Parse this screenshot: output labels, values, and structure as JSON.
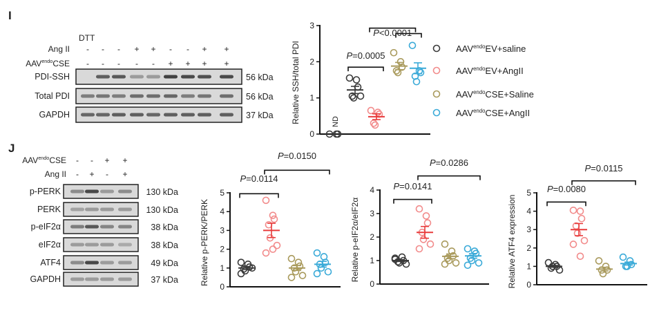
{
  "panel_I": {
    "label": "I",
    "blot": {
      "header": "DTT",
      "conditions": [
        {
          "label": "Ang II",
          "values": [
            "-",
            "-",
            "-",
            "+",
            "+",
            "-",
            "-",
            "+",
            "+"
          ]
        },
        {
          "label_pre": "AAV",
          "label_sup": "endo",
          "label_post": "CSE",
          "values": [
            "-",
            "-",
            "-",
            "-",
            "-",
            "+",
            "+",
            "+",
            "+"
          ]
        }
      ],
      "rows": [
        {
          "label": "PDI-SSH",
          "kda": "56 kDa"
        },
        {
          "label": "Total PDI",
          "kda": "56 kDa"
        },
        {
          "label": "GAPDH",
          "kda": "37 kDa"
        }
      ]
    }
  },
  "panel_J": {
    "label": "J",
    "blot": {
      "conditions": [
        {
          "label_pre": "AAV",
          "label_sup": "endo",
          "label_post": "CSE",
          "values": [
            "-",
            "-",
            "+",
            "+"
          ]
        },
        {
          "label": "Ang II",
          "values": [
            "-",
            "+",
            "-",
            "+"
          ]
        }
      ],
      "rows": [
        {
          "label": "p-PERK",
          "kda": "130 kDa"
        },
        {
          "label": "PERK",
          "kda": "130 kDa"
        },
        {
          "label": "p-eIF2α",
          "kda": "38 kDa"
        },
        {
          "label": "eIF2α",
          "kda": "38 kDa"
        },
        {
          "label": "ATF4",
          "kda": "49 kDa"
        },
        {
          "label": "GAPDH",
          "kda": "37 kDa"
        }
      ]
    }
  },
  "legend": [
    {
      "pre": "AAV",
      "sup": "endo",
      "post": "EV+saline",
      "color": "#3a3a3a"
    },
    {
      "pre": "AAV",
      "sup": "endo",
      "post": "EV+AngII",
      "color": "#f28b8b"
    },
    {
      "pre": "AAV",
      "sup": "endo",
      "post": "CSE+Saline",
      "color": "#a99a5c"
    },
    {
      "pre": "AAV",
      "sup": "endo",
      "post": "CSE+AngII",
      "color": "#3aaad8"
    }
  ],
  "chart_data": [
    {
      "type": "scatter",
      "ylabel": "Relative SSH/total PDI",
      "ylim": [
        0,
        3
      ],
      "yticks": [
        0,
        1,
        2,
        3
      ],
      "nd_label": "ND",
      "groups": [
        {
          "color": "#3a3a3a",
          "values": [
            0,
            0,
            0
          ],
          "mean": null
        },
        {
          "color": "#3a3a3a",
          "values": [
            1.55,
            1.5,
            1.3,
            1.05,
            1.0,
            1.05
          ],
          "mean": 1.22,
          "sem": 0.1
        },
        {
          "color": "#f28b8b",
          "mean_color": "#e83a3a",
          "values": [
            0.65,
            0.6,
            0.55,
            0.3,
            0.25
          ],
          "mean": 0.48,
          "sem": 0.08
        },
        {
          "color": "#a99a5c",
          "values": [
            2.25,
            2.0,
            1.85,
            1.75,
            1.7
          ],
          "mean": 1.88,
          "sem": 0.1
        },
        {
          "color": "#3aaad8",
          "values": [
            2.45,
            1.75,
            1.7,
            1.6,
            1.45
          ],
          "mean": 1.82,
          "sem": 0.15
        }
      ],
      "annotations": [
        {
          "text_italic": "P",
          "text": "=0.0005"
        },
        {
          "text_italic": "P",
          "text": "<0.0001"
        }
      ]
    },
    {
      "type": "scatter",
      "ylabel": "Relative p-PERK/PERK",
      "ylim": [
        0,
        5
      ],
      "yticks": [
        0,
        1,
        2,
        3,
        4,
        5
      ],
      "groups": [
        {
          "color": "#3a3a3a",
          "values": [
            1.3,
            1.2,
            1.05,
            0.95,
            0.85,
            1.0,
            0.7
          ],
          "mean": 1.0,
          "sem": 0.08
        },
        {
          "color": "#f28b8b",
          "mean_color": "#e83a3a",
          "values": [
            4.6,
            3.8,
            3.6,
            3.3,
            2.6,
            2.2,
            1.8,
            2.0
          ],
          "mean": 3.0,
          "sem": 0.38
        },
        {
          "color": "#a99a5c",
          "values": [
            1.5,
            1.3,
            1.1,
            1.0,
            0.8,
            0.6,
            0.5
          ],
          "mean": 1.0,
          "sem": 0.13
        },
        {
          "color": "#3aaad8",
          "values": [
            1.8,
            1.6,
            1.3,
            1.2,
            1.0,
            0.8,
            0.7
          ],
          "mean": 1.2,
          "sem": 0.15
        }
      ],
      "annotations": [
        {
          "text_italic": "P",
          "text": "=0.0114"
        },
        {
          "text_italic": "P",
          "text": "=0.0150"
        }
      ]
    },
    {
      "type": "scatter",
      "ylabel": "Relative p-eIF2α/eIF2α",
      "ylim": [
        0,
        4
      ],
      "yticks": [
        0,
        1,
        2,
        3,
        4
      ],
      "groups": [
        {
          "color": "#3a3a3a",
          "values": [
            1.1,
            1.15,
            1.0,
            0.95,
            0.9,
            0.85,
            1.05
          ],
          "mean": 1.0,
          "sem": 0.04
        },
        {
          "color": "#f28b8b",
          "mean_color": "#e83a3a",
          "values": [
            3.2,
            2.9,
            2.6,
            2.2,
            1.9,
            1.7,
            1.5
          ],
          "mean": 2.2,
          "sem": 0.25
        },
        {
          "color": "#a99a5c",
          "values": [
            1.7,
            1.4,
            1.2,
            1.1,
            1.0,
            0.9,
            0.85
          ],
          "mean": 1.18,
          "sem": 0.1
        },
        {
          "color": "#3aaad8",
          "values": [
            1.5,
            1.4,
            1.3,
            1.1,
            1.0,
            0.9,
            0.8
          ],
          "mean": 1.2,
          "sem": 0.1
        }
      ],
      "annotations": [
        {
          "text_italic": "P",
          "text": "=0.0141"
        },
        {
          "text_italic": "P",
          "text": "=0.0286"
        }
      ]
    },
    {
      "type": "scatter",
      "ylabel": "Relative ATF4 expression",
      "ylim": [
        0,
        5
      ],
      "yticks": [
        0,
        1,
        2,
        3,
        4,
        5
      ],
      "groups": [
        {
          "color": "#3a3a3a",
          "values": [
            1.2,
            1.1,
            1.0,
            0.9,
            1.0,
            0.8
          ],
          "mean": 1.0,
          "sem": 0.05
        },
        {
          "color": "#f28b8b",
          "mean_color": "#e83a3a",
          "values": [
            4.05,
            4.0,
            3.6,
            3.2,
            2.8,
            2.4,
            2.2,
            1.55
          ],
          "mean": 3.0,
          "sem": 0.33
        },
        {
          "color": "#a99a5c",
          "values": [
            1.3,
            1.0,
            0.8,
            0.8,
            0.6
          ],
          "mean": 0.85,
          "sem": 0.1
        },
        {
          "color": "#3aaad8",
          "values": [
            1.5,
            1.3,
            1.1,
            1.0,
            1.0
          ],
          "mean": 1.15,
          "sem": 0.08
        }
      ],
      "annotations": [
        {
          "text_italic": "P",
          "text": "=0.0080"
        },
        {
          "text_italic": "P",
          "text": "=0.0115"
        }
      ]
    }
  ]
}
